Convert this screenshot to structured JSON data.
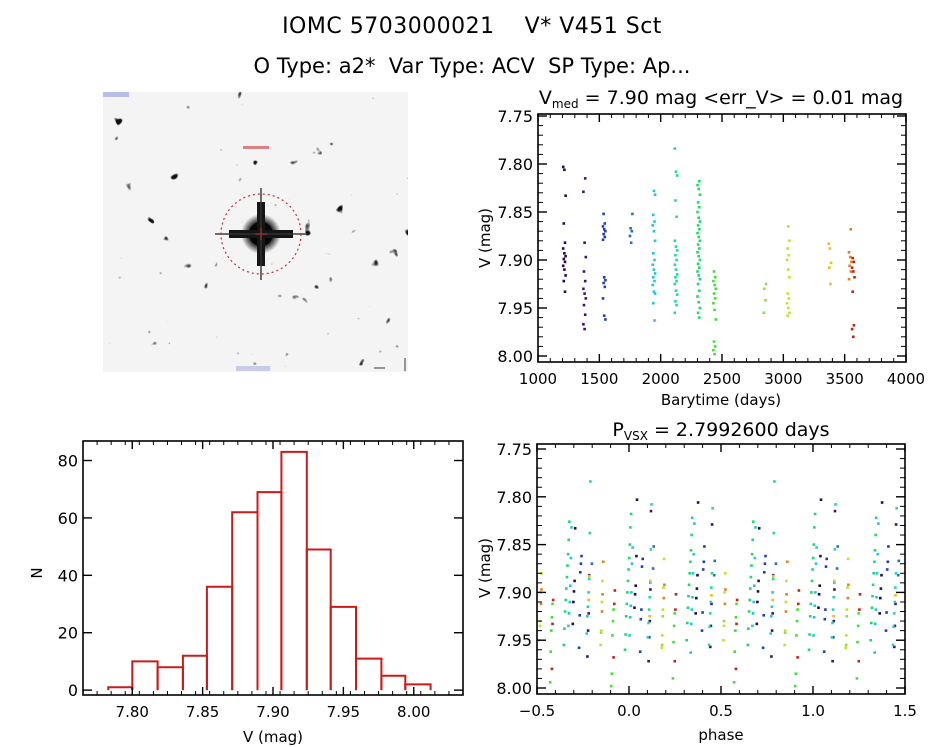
{
  "header": {
    "title_line1": "IOMC 5703000021    V* V451 Sct",
    "title_line2": "O Type: a2*  Var Type: ACV  SP Type: Ap..."
  },
  "sky_image": {
    "description": "DSS finder chart, grayscale, target star circled in red at center",
    "marker_color": "#c0303a"
  },
  "chart_data": [
    {
      "id": "light-curve",
      "type": "scatter",
      "title_main": "V",
      "title_sub": "med",
      "title_rest": " = 7.90 mag <err_V> = 0.01 mag",
      "xlabel": "Barytime (days)",
      "ylabel": "V (mag)",
      "xlim": [
        1000,
        4000
      ],
      "ylim": [
        7.75,
        8.0
      ],
      "y_inverted": true,
      "xticks": [
        1000,
        1500,
        2000,
        2500,
        3000,
        3500,
        4000
      ],
      "xtick_labels": [
        "1000",
        "1500",
        "2000",
        "2500",
        "3000",
        "3500",
        "4000"
      ],
      "yticks": [
        7.75,
        7.8,
        7.85,
        7.9,
        7.95,
        8.0
      ],
      "ytick_labels": [
        "7.75",
        "7.80",
        "7.85",
        "7.90",
        "7.95",
        "8.00"
      ],
      "grid": false,
      "color_by": "time (rainbow)",
      "clusters": [
        {
          "t": 1215,
          "color": "#2a0a4a",
          "mags": [
            7.803,
            7.806,
            7.833,
            7.862,
            7.882,
            7.888,
            7.893,
            7.896,
            7.899,
            7.902,
            7.906,
            7.91,
            7.916,
            7.922,
            7.933
          ]
        },
        {
          "t": 1380,
          "color": "#3c1470",
          "mags": [
            7.815,
            7.829,
            7.882,
            7.897,
            7.912,
            7.922,
            7.93,
            7.935,
            7.94,
            7.947,
            7.957,
            7.967,
            7.972
          ]
        },
        {
          "t": 1540,
          "color": "#1f3fb0",
          "mags": [
            7.852,
            7.862,
            7.865,
            7.868,
            7.87,
            7.873,
            7.876,
            7.879,
            7.918,
            7.921,
            7.924,
            7.928,
            7.94,
            7.958,
            7.962
          ]
        },
        {
          "t": 1760,
          "color": "#2a6ad0",
          "mags": [
            7.852,
            7.867,
            7.87,
            7.875,
            7.882
          ]
        },
        {
          "t": 1945,
          "color": "#22c8d8",
          "mags": [
            7.828,
            7.832,
            7.853,
            7.86,
            7.864,
            7.87,
            7.88,
            7.893,
            7.9,
            7.905,
            7.91,
            7.914,
            7.918,
            7.922,
            7.926,
            7.933,
            7.935,
            7.945,
            7.963
          ]
        },
        {
          "t": 2125,
          "color": "#22d8a8",
          "mags": [
            7.784,
            7.808,
            7.812,
            7.838,
            7.855,
            7.88,
            7.886,
            7.89,
            7.895,
            7.9,
            7.905,
            7.91,
            7.915,
            7.918,
            7.922,
            7.925,
            7.932,
            7.936,
            7.943,
            7.947,
            7.955
          ]
        },
        {
          "t": 2310,
          "color": "#22d870",
          "mags": [
            7.818,
            7.822,
            7.826,
            7.832,
            7.84,
            7.845,
            7.85,
            7.856,
            7.86,
            7.864,
            7.868,
            7.872,
            7.876,
            7.88,
            7.884,
            7.888,
            7.892,
            7.896,
            7.9,
            7.904,
            7.908,
            7.912,
            7.916,
            7.92,
            7.925,
            7.932,
            7.938,
            7.944,
            7.95,
            7.955,
            7.96
          ]
        },
        {
          "t": 2440,
          "color": "#44e034",
          "mags": [
            7.912,
            7.918,
            7.922,
            7.926,
            7.93,
            7.935,
            7.94,
            7.945,
            7.952,
            7.962,
            7.985,
            7.99,
            7.994,
            7.998
          ]
        },
        {
          "t": 2850,
          "color": "#90e040",
          "mags": [
            7.925,
            7.93,
            7.942,
            7.955
          ]
        },
        {
          "t": 3040,
          "color": "#c8e028",
          "mags": [
            7.865,
            7.88,
            7.888,
            7.895,
            7.9,
            7.91,
            7.918,
            7.935,
            7.94,
            7.945,
            7.95,
            7.955,
            7.958
          ]
        },
        {
          "t": 3380,
          "color": "#e8c020",
          "mags": [
            7.883,
            7.888,
            7.903,
            7.908,
            7.925
          ]
        },
        {
          "t": 3545,
          "color": "#e08020",
          "mags": [
            7.868,
            7.892,
            7.897,
            7.902,
            7.906,
            7.912,
            7.92
          ]
        },
        {
          "t": 3570,
          "color": "#c82018",
          "mags": [
            7.898,
            7.902,
            7.908,
            7.912,
            7.918,
            7.933,
            7.968,
            7.972,
            7.98
          ]
        }
      ]
    },
    {
      "id": "histogram",
      "type": "bar",
      "title": "",
      "xlabel": "V (mag)",
      "ylabel": "N",
      "xlim": [
        7.765,
        8.035
      ],
      "ylim": [
        -1.7,
        86.8
      ],
      "xticks": [
        7.8,
        7.85,
        7.9,
        7.95,
        8.0
      ],
      "xtick_labels": [
        "7.80",
        "7.85",
        "7.90",
        "7.95",
        "8.00"
      ],
      "yticks": [
        0,
        20,
        40,
        60,
        80
      ],
      "ytick_labels": [
        "0",
        "20",
        "40",
        "60",
        "80"
      ],
      "bin_edges": [
        7.783,
        7.8,
        7.818,
        7.836,
        7.853,
        7.871,
        7.889,
        7.906,
        7.924,
        7.941,
        7.959,
        7.977,
        7.994,
        8.012
      ],
      "values": [
        1,
        10,
        8,
        12,
        36,
        62,
        69,
        83,
        49,
        29,
        11,
        5,
        2
      ],
      "bar_color": "#cc1a1a",
      "grid": false
    },
    {
      "id": "phase-plot",
      "type": "scatter",
      "title_main": "P",
      "title_sub": "VSX",
      "title_rest": " = 2.7992600 days",
      "period_days": 2.79926,
      "xlabel": "phase",
      "ylabel": "V (mag)",
      "xlim": [
        -0.5,
        1.5
      ],
      "ylim": [
        7.75,
        8.0
      ],
      "y_inverted": true,
      "xticks": [
        -0.5,
        0.0,
        0.5,
        1.0,
        1.5
      ],
      "xtick_labels": [
        "−0.5",
        "0.0",
        "0.5",
        "1.0",
        "1.5"
      ],
      "yticks": [
        7.75,
        7.8,
        7.85,
        7.9,
        7.95,
        8.0
      ],
      "ytick_labels": [
        "7.75",
        "7.80",
        "7.85",
        "7.90",
        "7.95",
        "8.00"
      ],
      "grid": false,
      "note": "points are the light-curve data folded on period, plotted twice (phase and phase+1)"
    }
  ]
}
